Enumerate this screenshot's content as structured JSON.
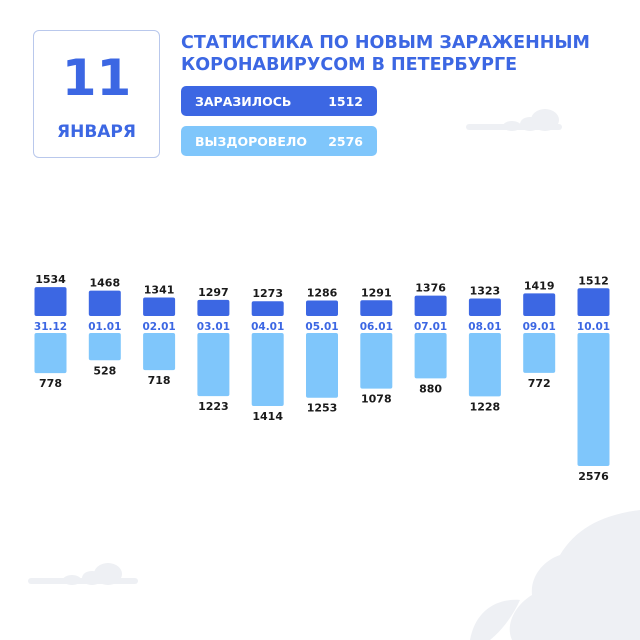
{
  "colors": {
    "infected": "#3c67e3",
    "recovered": "#7fc6fb",
    "accent_text": "#3c67e3",
    "value_text": "#1a1a1a",
    "decoration": "#eef0f4"
  },
  "date": {
    "day": "11",
    "month": "ЯНВАРЯ"
  },
  "title": {
    "line1": "СТАТИСТИКА ПО НОВЫМ ЗАРАЖЕННЫМ",
    "line2": "КОРОНАВИРУСОМ В ПЕТЕРБУРГЕ"
  },
  "summary": {
    "infected": {
      "label": "ЗАРАЗИЛОСЬ",
      "value": "1512"
    },
    "recovered": {
      "label": "ВЫЗДОРОВЕЛО",
      "value": "2576"
    }
  },
  "chart_data": {
    "type": "bar",
    "title": "",
    "grid": false,
    "categories": [
      "31.12",
      "01.01",
      "02.01",
      "03.01",
      "04.01",
      "05.01",
      "06.01",
      "07.01",
      "08.01",
      "09.01",
      "10.01"
    ],
    "series": [
      {
        "name": "ЗАРАЗИЛОСЬ",
        "values": [
          1534,
          1468,
          1341,
          1297,
          1273,
          1286,
          1291,
          1376,
          1323,
          1419,
          1512
        ]
      },
      {
        "name": "ВЫЗДОРОВЕЛО",
        "values": [
          778,
          528,
          718,
          1223,
          1414,
          1253,
          1078,
          880,
          1228,
          772,
          2576
        ]
      }
    ]
  }
}
